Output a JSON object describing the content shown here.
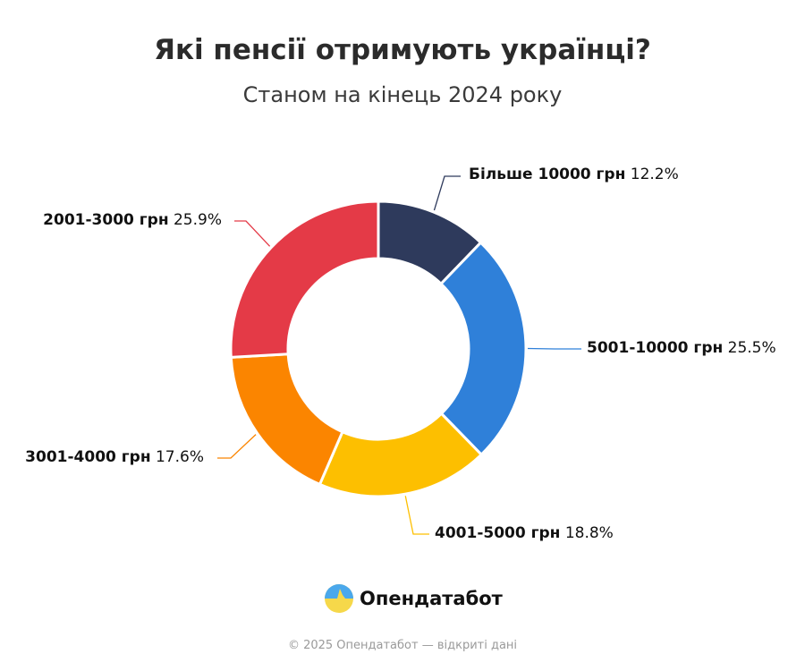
{
  "chart_data": {
    "type": "pie",
    "variant": "donut",
    "title": "Які пенсії отримують українці?",
    "subtitle": "Станом на кінець 2024 року",
    "start": "12 o'clock, clockwise",
    "slices": [
      {
        "label": "Більше 10000 грн",
        "value": 12.2,
        "value_label": "12.2%",
        "color": "#2e3a5c"
      },
      {
        "label": "5001-10000 грн",
        "value": 25.5,
        "value_label": "25.5%",
        "color": "#2f80d9"
      },
      {
        "label": "4001-5000 грн",
        "value": 18.8,
        "value_label": "18.8%",
        "color": "#fdbf00"
      },
      {
        "label": "3001-4000 грн",
        "value": 17.6,
        "value_label": "17.6%",
        "color": "#fb8500"
      },
      {
        "label": "2001-3000 грн",
        "value": 25.9,
        "value_label": "25.9%",
        "color": "#e43a47"
      }
    ]
  },
  "brand": {
    "name": "Опендатабот"
  },
  "footer": "© 2025 Опендатабот — відкриті дані"
}
